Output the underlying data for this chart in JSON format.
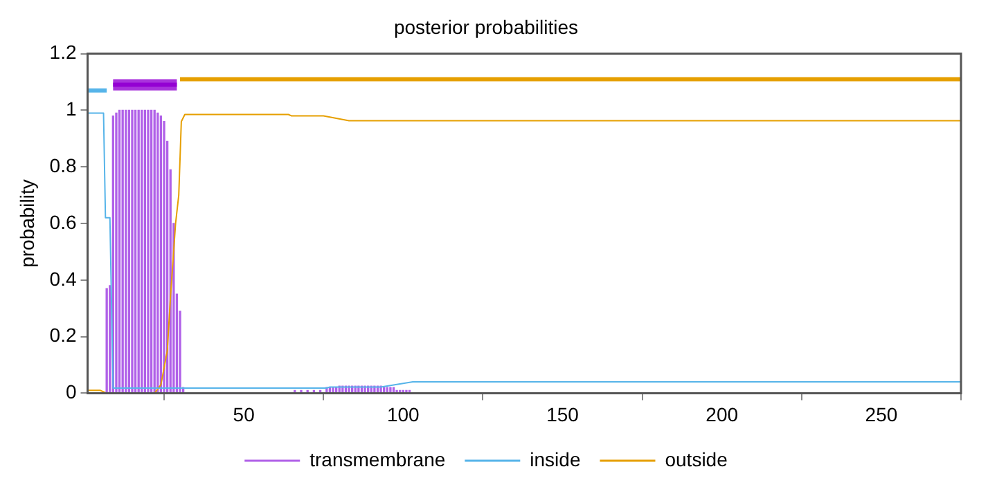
{
  "chart_data": {
    "type": "bar",
    "title": "posterior probabilities",
    "ylabel": "probability",
    "xlim": [
      1,
      275
    ],
    "xticks": [
      50,
      100,
      150,
      200,
      250
    ],
    "ylim": [
      0,
      1.2
    ],
    "yticks": [
      0,
      0.2,
      0.4,
      0.6,
      0.8,
      1,
      1.2
    ],
    "grid": false,
    "legend": "bottom",
    "marker": "none",
    "series": [
      {
        "name": "transmembrane",
        "color": "#b060e8",
        "x": [
          7,
          8,
          9,
          10,
          11,
          12,
          13,
          14,
          15,
          16,
          17,
          18,
          19,
          20,
          21,
          22,
          23,
          24,
          25,
          26,
          27,
          28,
          29,
          30,
          31,
          66,
          68,
          70,
          72,
          74,
          76,
          77,
          78,
          79,
          80,
          81,
          82,
          83,
          84,
          85,
          86,
          87,
          88,
          89,
          90,
          91,
          92,
          93,
          94,
          95,
          96,
          97,
          98,
          99,
          100,
          101,
          102
        ],
        "values": [
          0.37,
          0.38,
          0.98,
          0.99,
          1,
          1,
          1,
          1,
          1,
          1,
          1,
          1,
          1,
          1,
          1,
          1,
          0.99,
          0.98,
          0.96,
          0.89,
          0.79,
          0.6,
          0.35,
          0.29,
          0.02,
          0.01,
          0.01,
          0.01,
          0.01,
          0.01,
          0.02,
          0.02,
          0.02,
          0.02,
          0.025,
          0.025,
          0.025,
          0.025,
          0.025,
          0.025,
          0.025,
          0.025,
          0.025,
          0.025,
          0.025,
          0.025,
          0.025,
          0.025,
          0.02,
          0.02,
          0.02,
          0.02,
          0.01,
          0.01,
          0.01,
          0.01,
          0.01
        ]
      },
      {
        "type": "line",
        "name": "inside",
        "color": "#56b4e9",
        "x": [
          1,
          6,
          6.6,
          8,
          9,
          76,
          77,
          93,
          103,
          275
        ],
        "values": [
          0.99,
          0.99,
          0.62,
          0.62,
          0.018,
          0.018,
          0.022,
          0.022,
          0.04,
          0.04
        ]
      },
      {
        "type": "line",
        "name": "outside",
        "color": "#e69f00",
        "x": [
          1,
          5,
          7,
          22,
          24,
          26,
          27,
          28.6,
          29.6,
          30.4,
          31.5,
          64,
          65,
          75,
          83,
          275
        ],
        "values": [
          0.01,
          0.01,
          0,
          0,
          0.03,
          0.15,
          0.34,
          0.6,
          0.7,
          0.96,
          0.985,
          0.985,
          0.98,
          0.98,
          0.963,
          0.963
        ]
      },
      {
        "type": "line",
        "color": "#56b4e9",
        "x": [
          1,
          7
        ],
        "values": [
          1.07,
          1.07
        ]
      },
      {
        "type": "line",
        "color": "#9400d3",
        "x": [
          9,
          29
        ],
        "values": [
          1.09,
          1.09
        ],
        "lower": [
          1.07,
          1.07
        ],
        "upper": [
          1.11,
          1.11
        ]
      },
      {
        "type": "line",
        "color": "#e69f00",
        "x": [
          30,
          275
        ],
        "values": [
          1.11,
          1.11
        ]
      }
    ]
  }
}
